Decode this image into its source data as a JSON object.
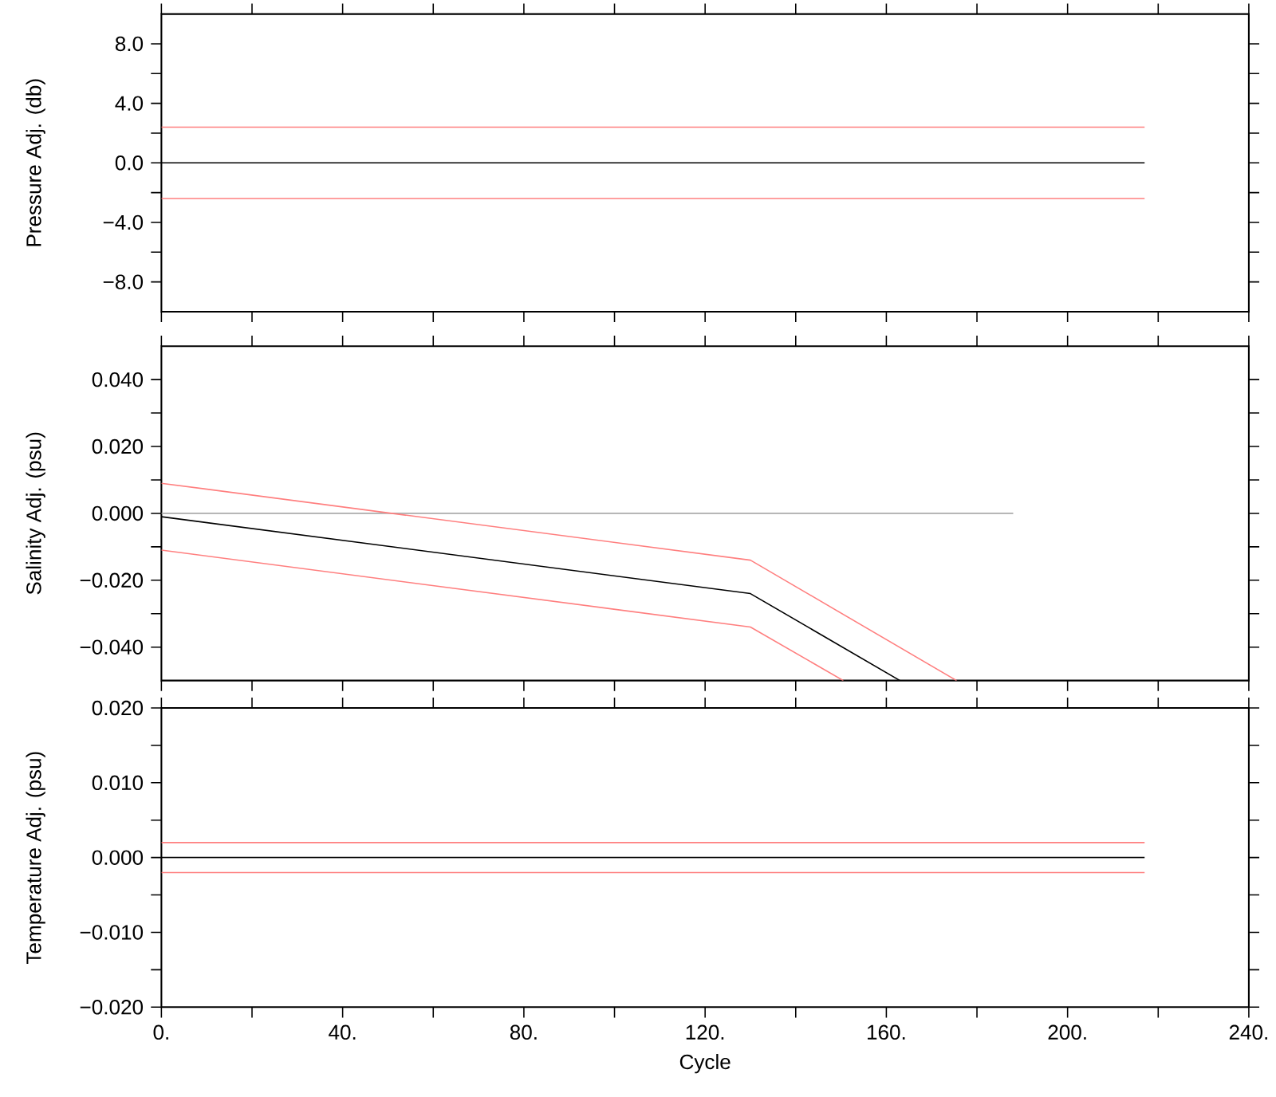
{
  "chart_data": [
    {
      "type": "line",
      "ylabel": "Pressure Adj. (db)",
      "xlim": [
        0,
        240
      ],
      "ylim": [
        -10,
        10
      ],
      "tick_labels": "y",
      "xticks": [
        0,
        20,
        40,
        60,
        80,
        100,
        120,
        140,
        160,
        180,
        200,
        220,
        240
      ],
      "yticks": [
        {
          "value": -8,
          "label": "−8.0"
        },
        {
          "value": -6,
          "label": null
        },
        {
          "value": -4,
          "label": "−4.0"
        },
        {
          "value": -2,
          "label": null
        },
        {
          "value": 0,
          "label": "0.0"
        },
        {
          "value": 2,
          "label": null
        },
        {
          "value": 4,
          "label": "4.0"
        },
        {
          "value": 6,
          "label": null
        },
        {
          "value": 8,
          "label": "8.0"
        }
      ],
      "series": [
        {
          "color": "#ff7f7f",
          "x": [
            0,
            217
          ],
          "values": [
            2.4,
            2.4
          ]
        },
        {
          "color": "#ff7f7f",
          "x": [
            0,
            217
          ],
          "values": [
            -2.4,
            -2.4
          ]
        },
        {
          "color": "#000000",
          "x": [
            0,
            217
          ],
          "values": [
            0,
            0
          ]
        }
      ]
    },
    {
      "type": "line",
      "ylabel": "Salinity Adj. (psu)",
      "xlim": [
        0,
        240
      ],
      "ylim": [
        -0.05,
        0.05
      ],
      "tick_labels": "y",
      "xticks": [
        0,
        20,
        40,
        60,
        80,
        100,
        120,
        140,
        160,
        180,
        200,
        220,
        240
      ],
      "yticks": [
        {
          "value": -0.04,
          "label": "−0.040"
        },
        {
          "value": -0.03,
          "label": null
        },
        {
          "value": -0.02,
          "label": "−0.020"
        },
        {
          "value": -0.01,
          "label": null
        },
        {
          "value": 0,
          "label": "0.000"
        },
        {
          "value": 0.01,
          "label": null
        },
        {
          "value": 0.02,
          "label": "0.020"
        },
        {
          "value": 0.03,
          "label": null
        },
        {
          "value": 0.04,
          "label": "0.040"
        }
      ],
      "series": [
        {
          "color": "#aaaaaa",
          "x": [
            0,
            188
          ],
          "values": [
            0,
            0
          ]
        },
        {
          "color": "#ff7f7f",
          "x": [
            0,
            130,
            175.5
          ],
          "values": [
            0.009,
            -0.014,
            -0.05
          ]
        },
        {
          "color": "#ff7f7f",
          "x": [
            0,
            130,
            150.5
          ],
          "values": [
            -0.011,
            -0.034,
            -0.05
          ]
        },
        {
          "color": "#000000",
          "x": [
            0,
            130,
            163
          ],
          "values": [
            -0.001,
            -0.024,
            -0.05
          ]
        }
      ]
    },
    {
      "type": "line",
      "xlabel": "Cycle",
      "ylabel": "Temperature Adj. (psu)",
      "xlim": [
        0,
        240
      ],
      "ylim": [
        -0.02,
        0.02
      ],
      "xticks": [
        {
          "value": 0,
          "label": "0."
        },
        {
          "value": 20,
          "label": null
        },
        {
          "value": 40,
          "label": "40."
        },
        {
          "value": 60,
          "label": null
        },
        {
          "value": 80,
          "label": "80."
        },
        {
          "value": 100,
          "label": null
        },
        {
          "value": 120,
          "label": "120."
        },
        {
          "value": 140,
          "label": null
        },
        {
          "value": 160,
          "label": "160."
        },
        {
          "value": 180,
          "label": null
        },
        {
          "value": 200,
          "label": "200."
        },
        {
          "value": 220,
          "label": null
        },
        {
          "value": 240,
          "label": "240."
        }
      ],
      "yticks": [
        {
          "value": -0.02,
          "label": "−0.020"
        },
        {
          "value": -0.015,
          "label": null
        },
        {
          "value": -0.01,
          "label": "−0.010"
        },
        {
          "value": -0.005,
          "label": null
        },
        {
          "value": 0,
          "label": "0.000"
        },
        {
          "value": 0.005,
          "label": null
        },
        {
          "value": 0.01,
          "label": "0.010"
        },
        {
          "value": 0.015,
          "label": null
        },
        {
          "value": 0.02,
          "label": "0.020"
        }
      ],
      "series": [
        {
          "color": "#ff7f7f",
          "x": [
            0,
            217
          ],
          "values": [
            0.002,
            0.002
          ]
        },
        {
          "color": "#ff7f7f",
          "x": [
            0,
            217
          ],
          "values": [
            -0.002,
            -0.002
          ]
        },
        {
          "color": "#000000",
          "x": [
            0,
            217
          ],
          "values": [
            0,
            0
          ]
        }
      ]
    }
  ]
}
